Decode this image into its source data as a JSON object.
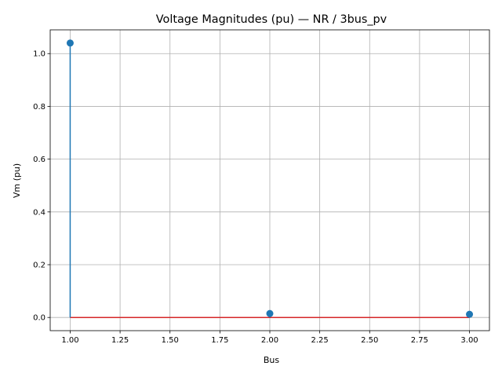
{
  "chart_data": {
    "type": "stem",
    "title": "Voltage Magnitudes (pu) — NR / 3bus_pv",
    "xlabel": "Bus",
    "ylabel": "Vm (pu)",
    "x": [
      1,
      2,
      3
    ],
    "y": [
      1.04,
      0.015,
      0.012
    ],
    "xlim": [
      0.9,
      3.1
    ],
    "ylim": [
      -0.05,
      1.09
    ],
    "xticks": [
      1.0,
      1.25,
      1.5,
      1.75,
      2.0,
      2.25,
      2.5,
      2.75,
      3.0
    ],
    "xtick_labels": [
      "1.00",
      "1.25",
      "1.50",
      "1.75",
      "2.00",
      "2.25",
      "2.50",
      "2.75",
      "3.00"
    ],
    "yticks": [
      0.0,
      0.2,
      0.4,
      0.6,
      0.8,
      1.0
    ],
    "ytick_labels": [
      "0.0",
      "0.2",
      "0.4",
      "0.6",
      "0.8",
      "1.0"
    ],
    "baseline": 0,
    "grid": true,
    "colors": {
      "stem": "#1f77b4",
      "marker": "#1f77b4",
      "baseline": "#d62728",
      "grid": "#b0b0b0"
    }
  }
}
